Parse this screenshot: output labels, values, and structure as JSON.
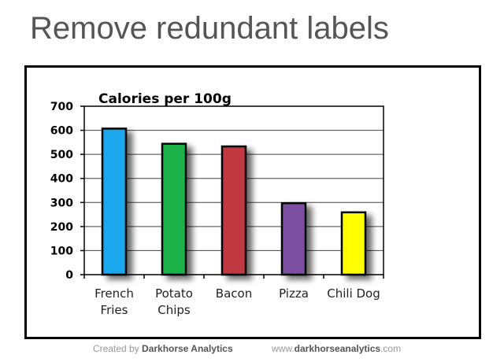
{
  "slide_title": "Remove redundant labels",
  "footer": {
    "created_prefix": "Created by",
    "created_brand": "Darkhorse Analytics",
    "url_prefix": "www.",
    "url_brand": "darkhorseanalytics",
    "url_suffix": ".com"
  },
  "chart_data": {
    "type": "bar",
    "title": "Calories per 100g",
    "xlabel": "",
    "ylabel": "",
    "categories": [
      [
        "French",
        "Fries"
      ],
      [
        "Potato",
        "Chips"
      ],
      [
        "Bacon"
      ],
      [
        "Pizza"
      ],
      [
        "Chili Dog"
      ]
    ],
    "values": [
      607,
      544,
      533,
      297,
      259
    ],
    "colors": [
      "#1aa7ec",
      "#1db249",
      "#c0393f",
      "#7b4fa0",
      "#ffff00"
    ],
    "ylim": [
      0,
      700
    ],
    "yticks": [
      0,
      100,
      200,
      300,
      400,
      500,
      600,
      700
    ],
    "grid": true,
    "legend": "none"
  }
}
